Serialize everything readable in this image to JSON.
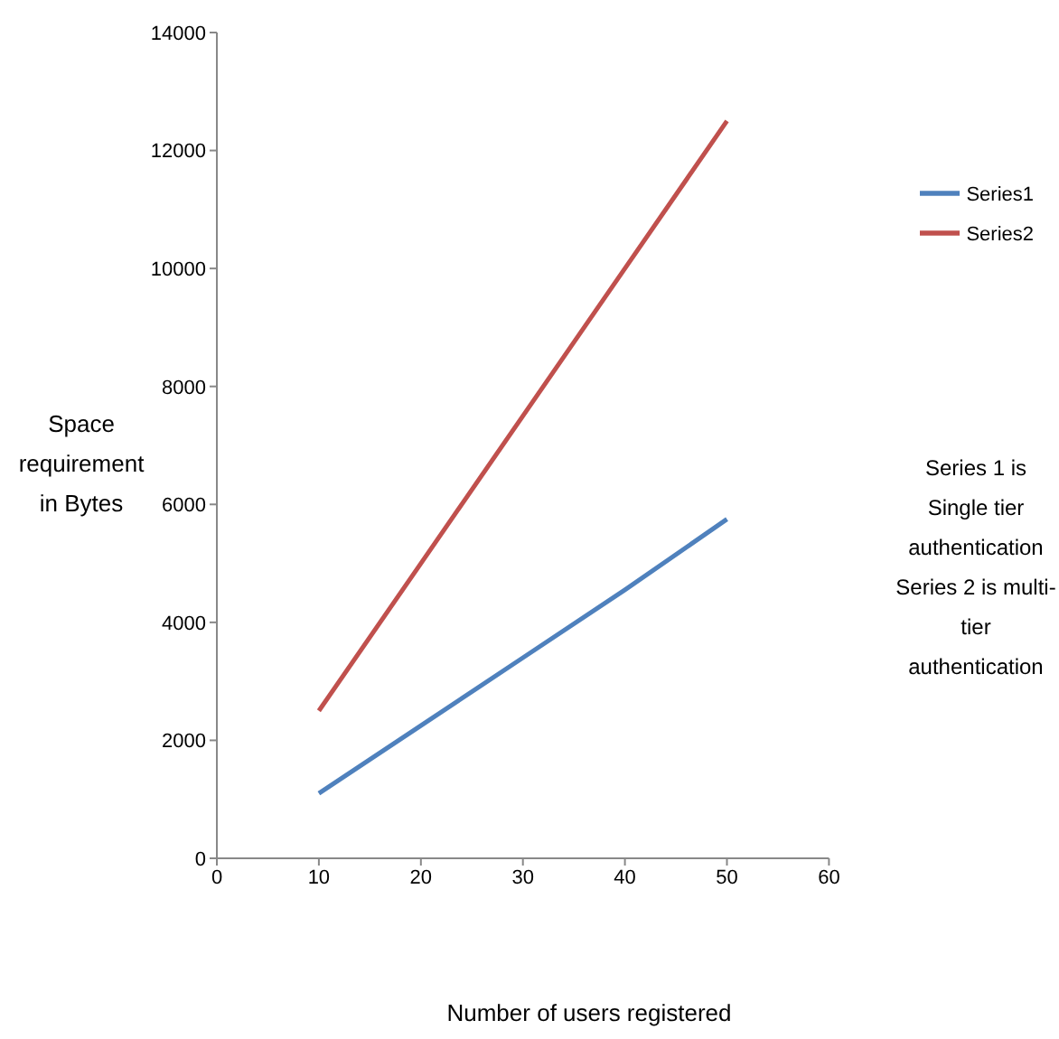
{
  "chart_data": {
    "type": "line",
    "xlabel": "Number of users registered",
    "ylabel": "Space requirement in Bytes",
    "x": [
      10,
      20,
      30,
      40,
      50
    ],
    "series": [
      {
        "name": "Series1",
        "color": "#4f81bd",
        "values": [
          1100,
          2250,
          3400,
          4550,
          5750
        ]
      },
      {
        "name": "Series2",
        "color": "#c0504d",
        "values": [
          2500,
          5000,
          7500,
          10000,
          12500
        ]
      }
    ],
    "xlim": [
      0,
      60
    ],
    "xticks": [
      0,
      10,
      20,
      30,
      40,
      50,
      60
    ],
    "ylim": [
      0,
      14000
    ],
    "yticks": [
      0,
      2000,
      4000,
      6000,
      8000,
      10000,
      12000,
      14000
    ],
    "grid": false,
    "legend": "right",
    "marker": "none",
    "line_style": "solid",
    "annotations": [
      "Series 1 is Single tier authentication",
      "Series 2 is multi-tier authentication"
    ]
  }
}
